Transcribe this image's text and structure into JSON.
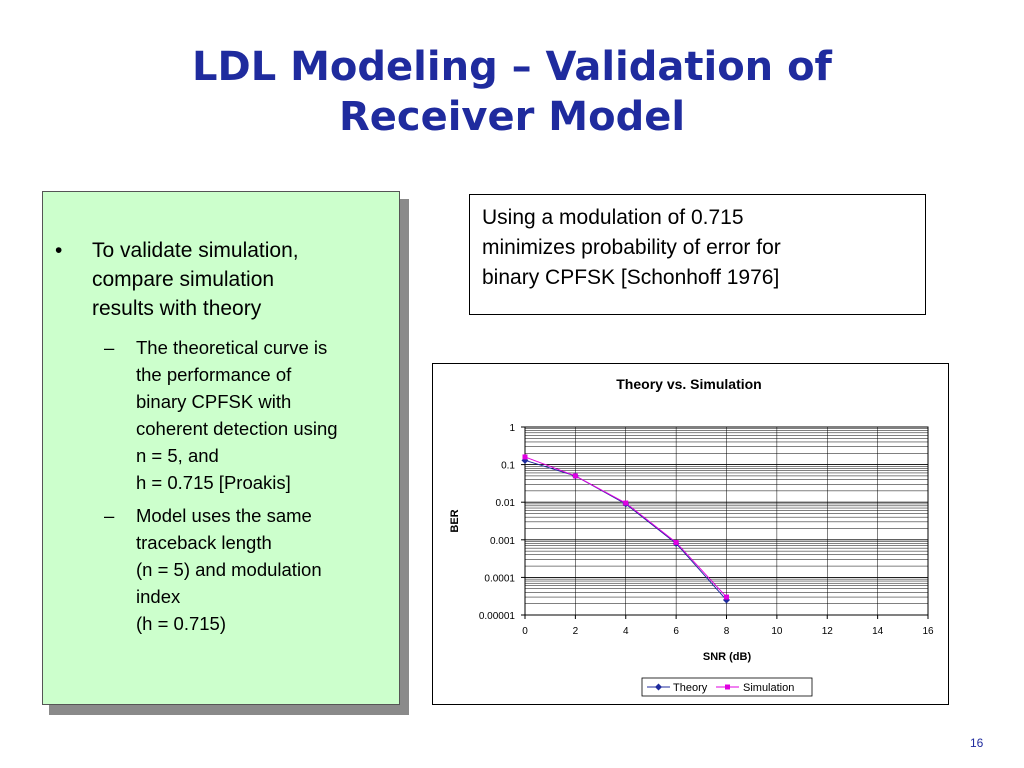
{
  "slide": {
    "title_line1": "LDL Modeling – Validation of",
    "title_line2": "Receiver Model",
    "page_number": "16"
  },
  "left_panel": {
    "bullet_symbol": "•",
    "bullet_lines": [
      "To validate simulation,",
      "compare simulation",
      "results with theory"
    ],
    "sub_symbol": "–",
    "sub1_lines": [
      "The theoretical curve is",
      "the performance of",
      "binary CPFSK with",
      "coherent detection using",
      "n = 5, and",
      "h = 0.715 [Proakis]"
    ],
    "sub2_lines": [
      "Model uses the same",
      "traceback length",
      "(n = 5) and modulation",
      "index",
      "(h = 0.715)"
    ]
  },
  "info_box": {
    "lines": [
      "Using a modulation of 0.715",
      "minimizes probability of error for",
      "binary CPFSK [Schonhoff 1976]"
    ]
  },
  "chart_data": {
    "type": "line",
    "title": "Theory vs. Simulation",
    "xlabel": "SNR (dB)",
    "ylabel": "BER",
    "y_scale": "log",
    "xlim": [
      0,
      16
    ],
    "ylim": [
      1e-05,
      1
    ],
    "x_ticks": [
      "0",
      "2",
      "4",
      "6",
      "8",
      "10",
      "12",
      "14",
      "16"
    ],
    "y_ticks": [
      "1",
      "0.1",
      "0.01",
      "0.001",
      "0.0001",
      "0.00001"
    ],
    "grid": true,
    "legend_position": "bottom",
    "series": [
      {
        "name": "Theory",
        "color": "#1f2b9e",
        "marker": "diamond",
        "x": [
          0,
          2,
          4,
          6,
          8
        ],
        "y": [
          0.13,
          0.05,
          0.009,
          0.0008,
          2.5e-05
        ]
      },
      {
        "name": "Simulation",
        "color": "#e000e0",
        "marker": "square",
        "x": [
          0,
          2,
          4,
          6,
          8
        ],
        "y": [
          0.16,
          0.05,
          0.0095,
          0.00085,
          3e-05
        ]
      }
    ]
  }
}
